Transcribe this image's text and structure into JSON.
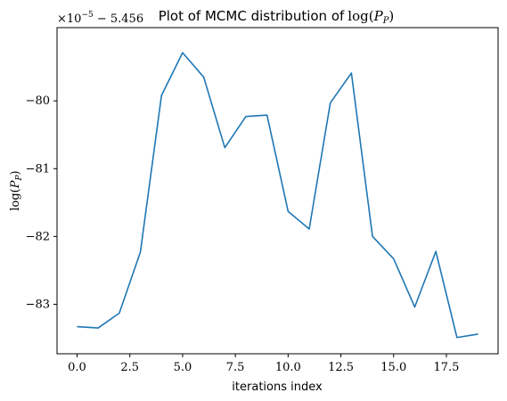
{
  "chart_data": {
    "type": "line",
    "title": "Plot of MCMC distribution of log(P_P)",
    "title_parts": {
      "prefix": "Plot of MCMC distribution of",
      "math": "log(",
      "sub_base": "P",
      "sub": "P",
      "close": ")"
    },
    "xlabel": "iterations index",
    "ylabel": "log(P_P)",
    "ylabel_parts": {
      "math": "log(",
      "sub_base": "P",
      "sub": "P",
      "close": ")"
    },
    "offset_text": {
      "mult": "×10",
      "exp": "−5",
      "rest": " − 5.456"
    },
    "x_ticks": [
      0.0,
      2.5,
      5.0,
      7.5,
      10.0,
      12.5,
      15.0,
      17.5
    ],
    "x_tick_labels": [
      "0.0",
      "2.5",
      "5.0",
      "7.5",
      "10.0",
      "12.5",
      "15.0",
      "17.5"
    ],
    "y_ticks": [
      -83,
      -82,
      -81,
      -80
    ],
    "y_tick_labels": [
      "−83",
      "−82",
      "−81",
      "−80"
    ],
    "xlim": [
      -0.95,
      19.95
    ],
    "ylim": [
      -83.73,
      -78.92
    ],
    "grid": false,
    "series": [
      {
        "color": "#1f77b4",
        "x": [
          0,
          1,
          2,
          3,
          4,
          5,
          6,
          7,
          8,
          9,
          10,
          11,
          12,
          13,
          14,
          15,
          16,
          17,
          18,
          19
        ],
        "values": [
          -83.33,
          -83.35,
          -83.13,
          -82.23,
          -79.92,
          -79.29,
          -79.65,
          -80.69,
          -80.23,
          -80.21,
          -81.63,
          -81.89,
          -80.03,
          -79.59,
          -82.0,
          -82.33,
          -83.04,
          -82.22,
          -83.49,
          -83.44
        ]
      }
    ]
  }
}
